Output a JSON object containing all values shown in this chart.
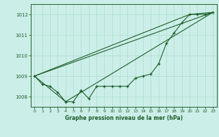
{
  "title": "Graphe pression niveau de la mer (hPa)",
  "background_color": "#cceee8",
  "grid_color": "#aaddcc",
  "line_color": "#1a5c28",
  "ylim": [
    1007.5,
    1012.5
  ],
  "xlim": [
    -0.5,
    23.5
  ],
  "xticks": [
    0,
    1,
    2,
    3,
    4,
    5,
    6,
    7,
    8,
    9,
    10,
    11,
    12,
    13,
    14,
    15,
    16,
    17,
    18,
    19,
    20,
    21,
    22,
    23
  ],
  "yticks": [
    1008,
    1009,
    1010,
    1011,
    1012
  ],
  "series_main": {
    "x": [
      0,
      1,
      2,
      3,
      4,
      5,
      6,
      7,
      8,
      9,
      10,
      11,
      12,
      13,
      14,
      15,
      16,
      17,
      18,
      19,
      20,
      21,
      22,
      23
    ],
    "y": [
      1009.0,
      1008.6,
      1008.5,
      1008.2,
      1007.75,
      1007.75,
      1008.3,
      1007.9,
      1008.5,
      1008.5,
      1008.5,
      1008.5,
      1008.5,
      1008.9,
      1009.0,
      1009.1,
      1009.6,
      1010.6,
      1011.1,
      1011.6,
      1012.0,
      1012.0,
      1012.0,
      1012.1
    ]
  },
  "series_line1": {
    "x": [
      0,
      23
    ],
    "y": [
      1009.0,
      1012.1
    ]
  },
  "series_line2": {
    "x": [
      0,
      4,
      23
    ],
    "y": [
      1009.0,
      1007.75,
      1012.1
    ]
  },
  "series_line3": {
    "x": [
      0,
      20,
      23
    ],
    "y": [
      1009.0,
      1012.0,
      1012.1
    ]
  }
}
